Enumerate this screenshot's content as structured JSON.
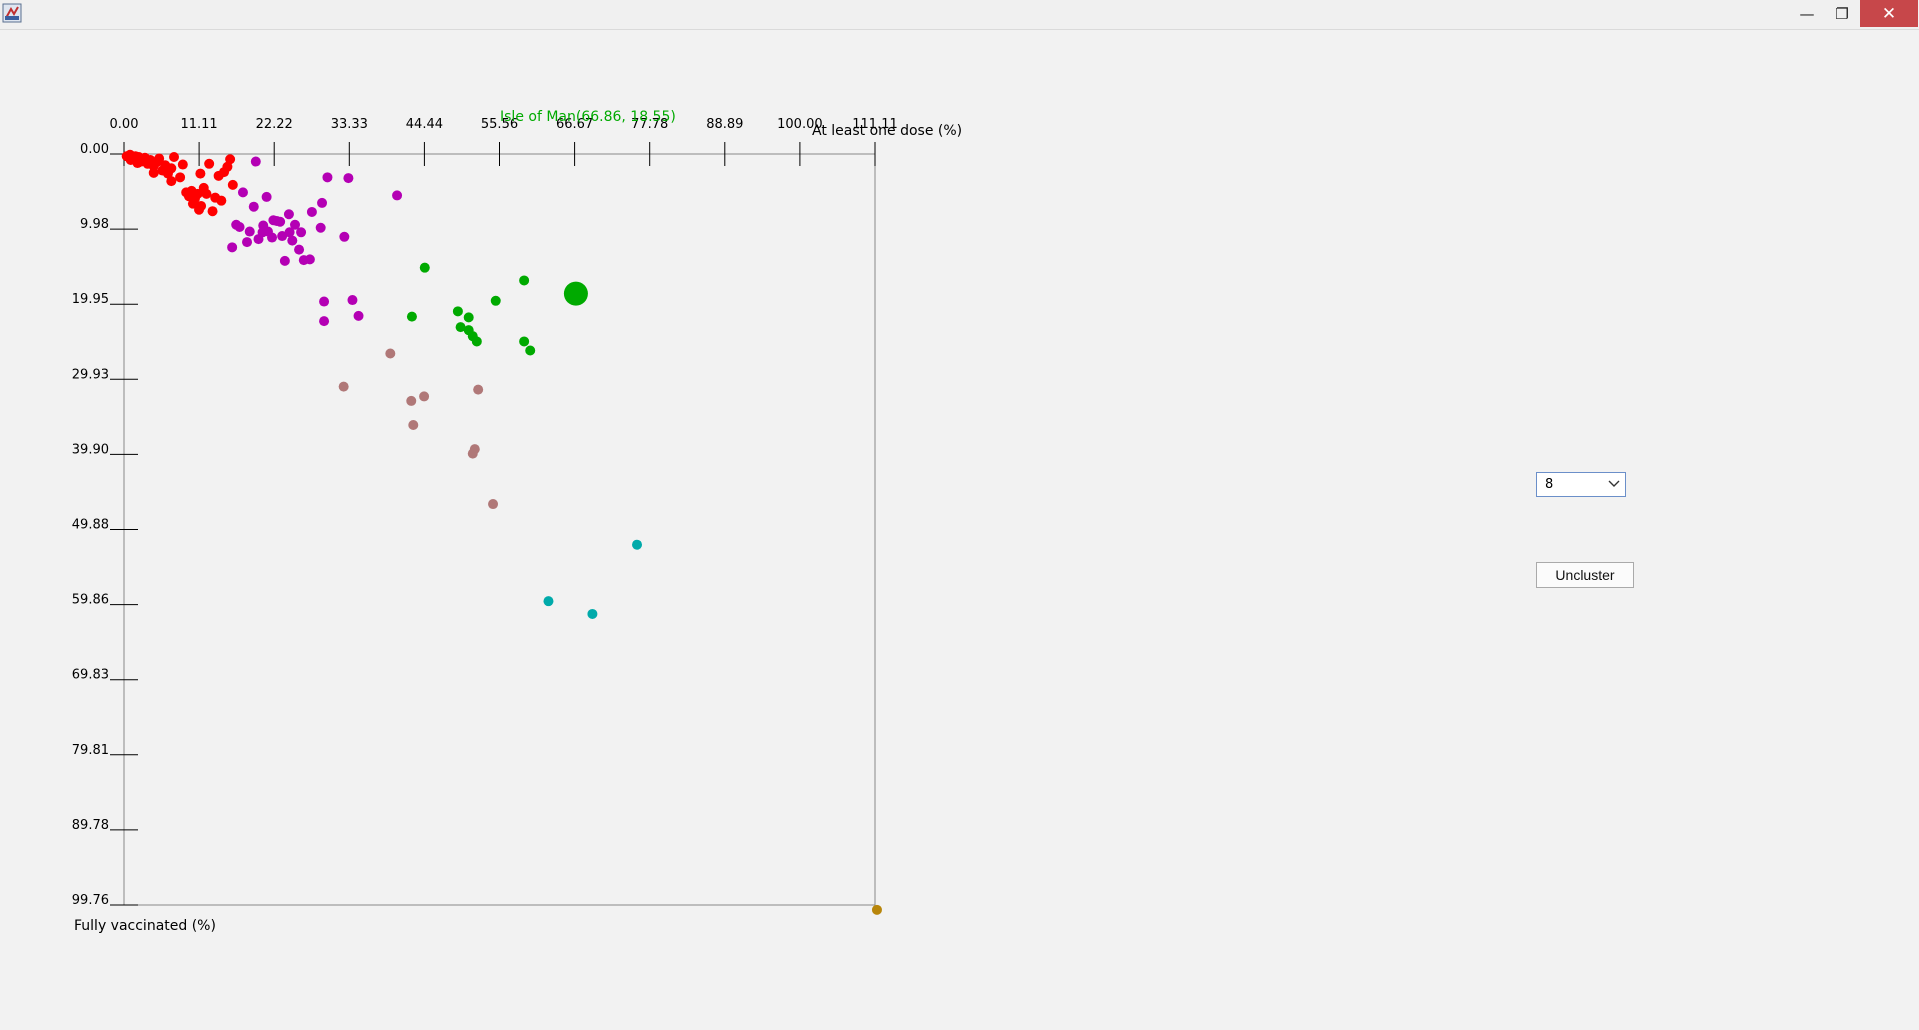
{
  "window": {
    "minimize_glyph": "—",
    "maximize_glyph": "❐",
    "close_glyph": "✕",
    "icons": [
      "java-app-icon",
      "minimize-icon",
      "maximize-icon",
      "close-icon"
    ]
  },
  "controls": {
    "cluster_count": "8",
    "uncluster_label": "Uncluster"
  },
  "chart_data": {
    "type": "scatter",
    "highlight_label": "Isle of Man(66.86, 18.55)",
    "xlabel": "At least one dose (%)",
    "ylabel": "Fully vaccinated (%)",
    "x_ticks": [
      "0.00",
      "11.11",
      "22.22",
      "33.33",
      "44.44",
      "55.56",
      "66.67",
      "77.78",
      "88.89",
      "100.00",
      "111.11"
    ],
    "y_ticks": [
      "0.00",
      "9.98",
      "19.95",
      "29.93",
      "39.90",
      "49.88",
      "59.86",
      "69.83",
      "79.81",
      "89.78",
      "99.76"
    ],
    "xlim": [
      0,
      111.11
    ],
    "ylim": [
      0,
      99.76
    ],
    "y_inverted": true,
    "colors": {
      "red": "#ff0000",
      "purple": "#b400b4",
      "green": "#00aa00",
      "brown": "#b07878",
      "cyan": "#00aaaa",
      "gold": "#b8860b",
      "axis": "#666666",
      "highlight_text": "#00aa00"
    },
    "series": [
      {
        "color": "red",
        "points": [
          [
            0.4,
            0.3
          ],
          [
            0.9,
            0.1
          ],
          [
            1.3,
            0.6
          ],
          [
            1.7,
            0.3
          ],
          [
            2.2,
            0.4
          ],
          [
            2.6,
            1.0
          ],
          [
            3.1,
            0.5
          ],
          [
            3.5,
            1.3
          ],
          [
            3.9,
            0.8
          ],
          [
            4.4,
            1.6
          ],
          [
            4.8,
            1.1
          ],
          [
            5.2,
            0.6
          ],
          [
            5.7,
            2.2
          ],
          [
            6.1,
            1.5
          ],
          [
            6.5,
            2.6
          ],
          [
            7.0,
            1.9
          ],
          [
            7.4,
            0.4
          ],
          [
            7.0,
            3.6
          ],
          [
            8.3,
            3.1
          ],
          [
            8.7,
            1.4
          ],
          [
            9.2,
            5.1
          ],
          [
            9.6,
            5.6
          ],
          [
            10.0,
            4.9
          ],
          [
            10.5,
            5.9
          ],
          [
            10.9,
            5.3
          ],
          [
            11.3,
            2.6
          ],
          [
            11.8,
            4.5
          ],
          [
            12.2,
            5.3
          ],
          [
            12.6,
            1.3
          ],
          [
            13.1,
            7.6
          ],
          [
            13.5,
            5.8
          ],
          [
            14.0,
            2.9
          ],
          [
            14.4,
            6.2
          ],
          [
            14.8,
            2.4
          ],
          [
            15.3,
            1.7
          ],
          [
            15.7,
            0.7
          ],
          [
            16.1,
            4.1
          ],
          [
            11.4,
            6.9
          ],
          [
            11.1,
            7.4
          ],
          [
            10.2,
            6.6
          ],
          [
            4.4,
            2.5
          ],
          [
            2.0,
            1.2
          ],
          [
            1.0,
            0.8
          ]
        ]
      },
      {
        "color": "purple",
        "points": [
          [
            19.5,
            1.0
          ],
          [
            17.6,
            5.1
          ],
          [
            19.2,
            7.0
          ],
          [
            21.1,
            5.7
          ],
          [
            16.6,
            9.4
          ],
          [
            18.6,
            10.3
          ],
          [
            19.9,
            11.3
          ],
          [
            18.2,
            11.7
          ],
          [
            17.1,
            9.7
          ],
          [
            20.6,
            9.5
          ],
          [
            22.1,
            8.8
          ],
          [
            23.1,
            9.0
          ],
          [
            24.4,
            8.0
          ],
          [
            25.3,
            9.4
          ],
          [
            26.2,
            10.4
          ],
          [
            24.5,
            10.4
          ],
          [
            25.9,
            12.7
          ],
          [
            24.9,
            11.5
          ],
          [
            21.9,
            11.1
          ],
          [
            21.3,
            10.3
          ],
          [
            23.4,
            10.9
          ],
          [
            23.8,
            14.2
          ],
          [
            29.3,
            6.5
          ],
          [
            22.6,
            8.9
          ],
          [
            27.8,
            7.7
          ],
          [
            29.1,
            9.8
          ],
          [
            32.6,
            11.0
          ],
          [
            30.1,
            3.1
          ],
          [
            33.2,
            3.2
          ],
          [
            40.4,
            5.5
          ],
          [
            16.0,
            12.4
          ],
          [
            20.5,
            10.4
          ],
          [
            26.6,
            14.1
          ],
          [
            29.6,
            19.6
          ],
          [
            33.8,
            19.4
          ],
          [
            34.7,
            21.5
          ],
          [
            29.6,
            22.2
          ],
          [
            27.5,
            14.0
          ]
        ]
      },
      {
        "color": "green",
        "points": [
          [
            44.5,
            15.1
          ],
          [
            59.2,
            16.8
          ],
          [
            55.0,
            19.5
          ],
          [
            49.4,
            20.9
          ],
          [
            51.0,
            21.7
          ],
          [
            42.6,
            21.6
          ],
          [
            49.8,
            23.0
          ],
          [
            51.0,
            23.4
          ],
          [
            51.6,
            24.2
          ],
          [
            52.2,
            24.9
          ],
          [
            59.2,
            24.9
          ],
          [
            60.1,
            26.1
          ]
        ]
      },
      {
        "color": "brown",
        "points": [
          [
            39.4,
            26.5
          ],
          [
            32.5,
            30.9
          ],
          [
            52.4,
            31.3
          ],
          [
            44.4,
            32.2
          ],
          [
            42.5,
            32.8
          ],
          [
            42.8,
            36.0
          ],
          [
            51.9,
            39.2
          ],
          [
            51.6,
            39.8
          ],
          [
            54.6,
            46.5
          ]
        ]
      },
      {
        "color": "cyan",
        "points": [
          [
            75.9,
            51.9
          ],
          [
            62.8,
            59.4
          ],
          [
            69.3,
            61.1
          ]
        ]
      },
      {
        "color": "gold",
        "points": [
          [
            111.4,
            100.4
          ]
        ]
      }
    ],
    "highlight_point": {
      "x": 66.86,
      "y": 18.55,
      "color": "green"
    }
  }
}
